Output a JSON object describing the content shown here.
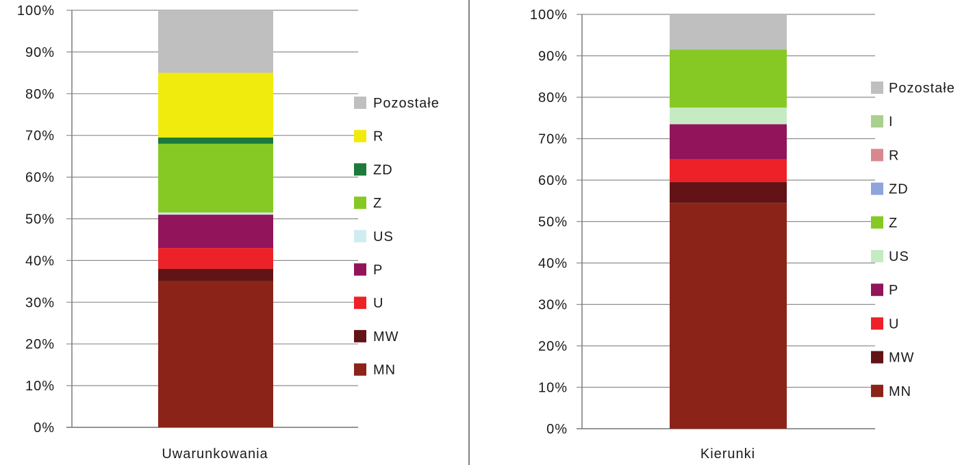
{
  "chart_data": [
    {
      "type": "bar",
      "stacked": true,
      "categories": [
        "Uwarunkowania"
      ],
      "y_ticks": [
        "0%",
        "10%",
        "20%",
        "30%",
        "40%",
        "50%",
        "60%",
        "70%",
        "80%",
        "90%",
        "100%"
      ],
      "ylim": [
        0,
        100
      ],
      "grid": true,
      "legend_position": "right",
      "series": [
        {
          "name": "MN",
          "color": "#8B2318",
          "values": [
            35
          ]
        },
        {
          "name": "MW",
          "color": "#611315",
          "values": [
            3
          ]
        },
        {
          "name": "U",
          "color": "#EC2228",
          "values": [
            5
          ]
        },
        {
          "name": "P",
          "color": "#92145A",
          "values": [
            8
          ]
        },
        {
          "name": "US",
          "color": "#D0ECF0",
          "values": [
            0.5
          ]
        },
        {
          "name": "Z",
          "color": "#86C924",
          "values": [
            16.5
          ]
        },
        {
          "name": "ZD",
          "color": "#1C7A3A",
          "values": [
            1.5
          ]
        },
        {
          "name": "R",
          "color": "#F0EB0C",
          "values": [
            15.5
          ]
        },
        {
          "name": "Pozostałe",
          "color": "#BFBFBF",
          "values": [
            15
          ]
        }
      ]
    },
    {
      "type": "bar",
      "stacked": true,
      "categories": [
        "Kierunki"
      ],
      "y_ticks": [
        "0%",
        "10%",
        "20%",
        "30%",
        "40%",
        "50%",
        "60%",
        "70%",
        "80%",
        "90%",
        "100%"
      ],
      "ylim": [
        0,
        100
      ],
      "grid": true,
      "legend_position": "right",
      "series": [
        {
          "name": "MN",
          "color": "#8B2318",
          "values": [
            54.5
          ]
        },
        {
          "name": "MW",
          "color": "#611315",
          "values": [
            5
          ]
        },
        {
          "name": "U",
          "color": "#EC2228",
          "values": [
            5.5
          ]
        },
        {
          "name": "P",
          "color": "#92145A",
          "values": [
            8.5
          ]
        },
        {
          "name": "US",
          "color": "#C6EBC3",
          "values": [
            4
          ]
        },
        {
          "name": "Z",
          "color": "#86C924",
          "values": [
            14
          ]
        },
        {
          "name": "ZD",
          "color": "#8EA4DB",
          "values": [
            0
          ]
        },
        {
          "name": "R",
          "color": "#D98890",
          "values": [
            0
          ]
        },
        {
          "name": "I",
          "color": "#A9D08E",
          "values": [
            0
          ]
        },
        {
          "name": "Pozostałe",
          "color": "#BFBFBF",
          "values": [
            8.5
          ]
        }
      ]
    }
  ]
}
